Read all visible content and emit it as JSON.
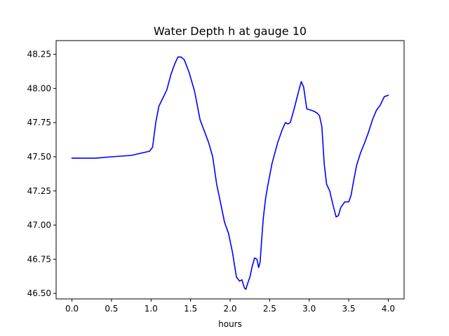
{
  "chart_data": {
    "type": "line",
    "title": "Water Depth h at gauge 10",
    "xlabel": "hours",
    "ylabel": "",
    "xlim": [
      -0.2,
      4.2
    ],
    "ylim": [
      46.46,
      48.35
    ],
    "xticks": [
      0.0,
      0.5,
      1.0,
      1.5,
      2.0,
      2.5,
      3.0,
      3.5,
      4.0
    ],
    "xtick_labels": [
      "0.0",
      "0.5",
      "1.0",
      "1.5",
      "2.0",
      "2.5",
      "3.0",
      "3.5",
      "4.0"
    ],
    "yticks": [
      46.5,
      46.75,
      47.0,
      47.25,
      47.5,
      47.75,
      48.0,
      48.25
    ],
    "ytick_labels": [
      "46.50",
      "46.75",
      "47.00",
      "47.25",
      "47.50",
      "47.75",
      "48.00",
      "48.25"
    ],
    "grid": false,
    "series": [
      {
        "color": "#0000ff",
        "x": [
          0.0,
          0.3,
          0.5,
          0.75,
          0.9,
          0.98,
          1.02,
          1.06,
          1.1,
          1.15,
          1.2,
          1.25,
          1.3,
          1.34,
          1.38,
          1.42,
          1.48,
          1.55,
          1.62,
          1.68,
          1.73,
          1.78,
          1.83,
          1.88,
          1.93,
          1.98,
          2.03,
          2.08,
          2.12,
          2.15,
          2.18,
          2.2,
          2.22,
          2.25,
          2.28,
          2.31,
          2.34,
          2.36,
          2.38,
          2.4,
          2.42,
          2.45,
          2.48,
          2.53,
          2.6,
          2.66,
          2.7,
          2.73,
          2.76,
          2.8,
          2.84,
          2.88,
          2.9,
          2.93,
          2.97,
          3.03,
          3.07,
          3.1,
          3.13,
          3.16,
          3.19,
          3.22,
          3.26,
          3.3,
          3.34,
          3.37,
          3.4,
          3.45,
          3.5,
          3.53,
          3.56,
          3.6,
          3.65,
          3.7,
          3.75,
          3.8,
          3.85,
          3.9,
          3.95,
          4.0
        ],
        "y": [
          47.49,
          47.49,
          47.5,
          47.51,
          47.53,
          47.54,
          47.57,
          47.75,
          47.87,
          47.93,
          47.99,
          48.1,
          48.18,
          48.23,
          48.23,
          48.21,
          48.12,
          47.98,
          47.77,
          47.68,
          47.6,
          47.5,
          47.3,
          47.16,
          47.02,
          46.94,
          46.8,
          46.62,
          46.59,
          46.6,
          46.54,
          46.53,
          46.57,
          46.62,
          46.7,
          46.76,
          46.75,
          46.69,
          46.73,
          46.9,
          47.05,
          47.2,
          47.3,
          47.45,
          47.6,
          47.7,
          47.75,
          47.74,
          47.75,
          47.83,
          47.92,
          48.01,
          48.05,
          48.01,
          47.85,
          47.84,
          47.83,
          47.82,
          47.8,
          47.72,
          47.45,
          47.3,
          47.25,
          47.15,
          47.06,
          47.07,
          47.13,
          47.17,
          47.17,
          47.22,
          47.32,
          47.44,
          47.53,
          47.6,
          47.68,
          47.77,
          47.84,
          47.88,
          47.94,
          47.95
        ]
      }
    ]
  }
}
